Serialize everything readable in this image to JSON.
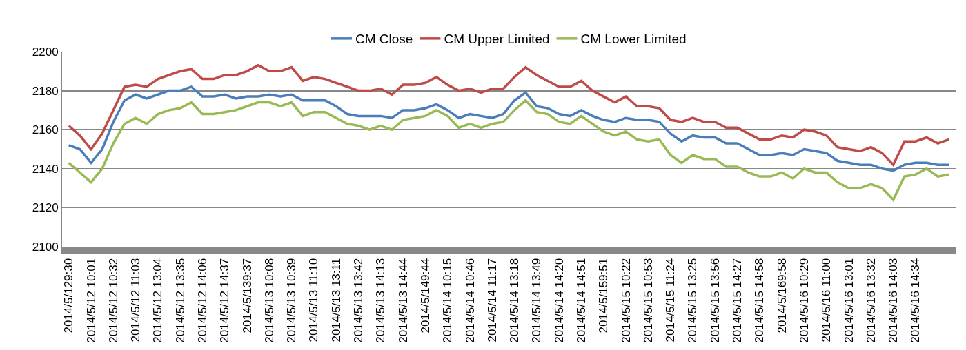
{
  "chart_data": {
    "type": "line",
    "categories": [
      "2014/5/129:30",
      null,
      "2014/5/12 10:01",
      null,
      "2014/5/12 10:32",
      null,
      "2014/5/12 11:03",
      null,
      "2014/5/12 13:04",
      null,
      "2014/5/12 13:35",
      null,
      "2014/5/12 14:06",
      null,
      "2014/5/12 14:37",
      null,
      "2014/5/139:37",
      null,
      "2014/5/13 10:08",
      null,
      "2014/5/13 10:39",
      null,
      "2014/5/13 11:10",
      null,
      "2014/5/13 13:11",
      null,
      "2014/5/13 13:42",
      null,
      "2014/5/13 14:13",
      null,
      "2014/5/13 14:44",
      null,
      "2014/5/149:44",
      null,
      "2014/5/14 10:15",
      null,
      "2014/5/14 10:46",
      null,
      "2014/5/14 11:17",
      null,
      "2014/5/14 13:18",
      null,
      "2014/5/14 13:49",
      null,
      "2014/5/14 14:20",
      null,
      "2014/5/14 14:51",
      null,
      "2014/5/159:51",
      null,
      "2014/5/15 10:22",
      null,
      "2014/5/15 10:53",
      null,
      "2014/5/15 11:24",
      null,
      "2014/5/15 13:25",
      null,
      "2014/5/15 13:56",
      null,
      "2014/5/15 14:27",
      null,
      "2014/5/15 14:58",
      null,
      "2014/5/169:58",
      null,
      "2014/5/16 10:29",
      null,
      "2014/5/16 11:00",
      null,
      "2014/5/16 13:01",
      null,
      "2014/5/16 13:32",
      null,
      "2014/5/16 14:03",
      null,
      "2014/5/16 14:34",
      null,
      null,
      null
    ],
    "series": [
      {
        "name": "CM Close",
        "color": "#4a7ebb",
        "values": [
          2152,
          2150,
          2143,
          2150,
          2164,
          2175,
          2178,
          2176,
          2178,
          2180,
          2180,
          2182,
          2177,
          2177,
          2178,
          2176,
          2177,
          2177,
          2178,
          2177,
          2178,
          2175,
          2175,
          2175,
          2172,
          2168,
          2167,
          2167,
          2167,
          2166,
          2170,
          2170,
          2171,
          2173,
          2170,
          2166,
          2168,
          2167,
          2166,
          2168,
          2175,
          2179,
          2172,
          2171,
          2168,
          2167,
          2170,
          2167,
          2165,
          2164,
          2166,
          2165,
          2165,
          2164,
          2158,
          2154,
          2157,
          2156,
          2156,
          2153,
          2153,
          2150,
          2147,
          2147,
          2148,
          2147,
          2150,
          2149,
          2148,
          2144,
          2143,
          2142,
          2142,
          2140,
          2139,
          2142,
          2143,
          2143,
          2142,
          2142
        ]
      },
      {
        "name": "CM Upper Limited",
        "color": "#be4b48",
        "values": [
          2162,
          2157,
          2150,
          2158,
          2170,
          2182,
          2183,
          2182,
          2186,
          2188,
          2190,
          2191,
          2186,
          2186,
          2188,
          2188,
          2190,
          2193,
          2190,
          2190,
          2192,
          2185,
          2187,
          2186,
          2184,
          2182,
          2180,
          2180,
          2181,
          2178,
          2183,
          2183,
          2184,
          2187,
          2183,
          2180,
          2181,
          2179,
          2181,
          2181,
          2187,
          2192,
          2188,
          2185,
          2182,
          2182,
          2185,
          2180,
          2177,
          2174,
          2177,
          2172,
          2172,
          2171,
          2165,
          2164,
          2166,
          2164,
          2164,
          2161,
          2161,
          2158,
          2155,
          2155,
          2157,
          2156,
          2160,
          2159,
          2157,
          2151,
          2150,
          2149,
          2151,
          2148,
          2142,
          2154,
          2154,
          2156,
          2153,
          2155
        ]
      },
      {
        "name": "CM Lower Limited",
        "color": "#98b954",
        "values": [
          2143,
          2138,
          2133,
          2140,
          2153,
          2163,
          2166,
          2163,
          2168,
          2170,
          2171,
          2174,
          2168,
          2168,
          2169,
          2170,
          2172,
          2174,
          2174,
          2172,
          2174,
          2167,
          2169,
          2169,
          2166,
          2163,
          2162,
          2160,
          2162,
          2160,
          2165,
          2166,
          2167,
          2170,
          2167,
          2161,
          2163,
          2161,
          2163,
          2164,
          2170,
          2175,
          2169,
          2168,
          2164,
          2163,
          2167,
          2163,
          2159,
          2157,
          2159,
          2155,
          2154,
          2155,
          2147,
          2143,
          2147,
          2145,
          2145,
          2141,
          2141,
          2138,
          2136,
          2136,
          2138,
          2135,
          2140,
          2138,
          2138,
          2133,
          2130,
          2130,
          2132,
          2130,
          2124,
          2136,
          2137,
          2140,
          2136,
          2137
        ]
      }
    ],
    "ylim": [
      2100,
      2200
    ],
    "yticks": [
      2100,
      2120,
      2140,
      2160,
      2180,
      2200
    ],
    "grid": "y",
    "legend": "top",
    "marker": "none",
    "line_style": "solid"
  }
}
